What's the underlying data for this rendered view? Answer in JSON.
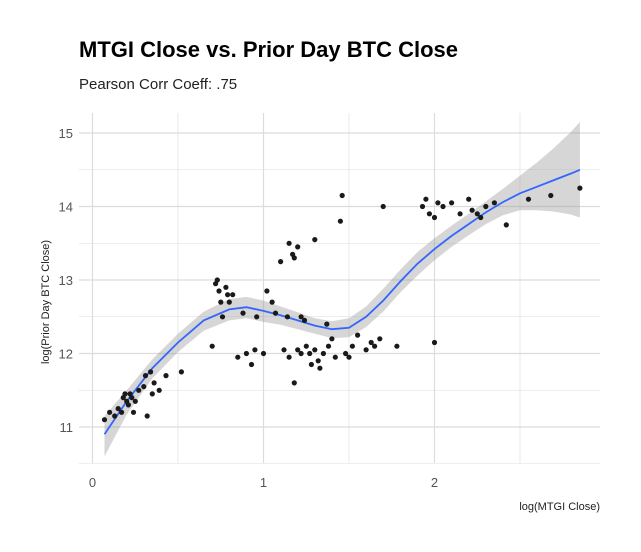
{
  "chart_data": {
    "type": "scatter",
    "title": "MTGI Close vs. Prior Day BTC Close",
    "subtitle": "Pearson Corr Coeff: .75",
    "xlabel": "log(MTGI Close)",
    "ylabel": "log(Prior Day BTC Close)",
    "xlim": [
      -0.07,
      2.97
    ],
    "ylim": [
      10.5,
      15.35
    ],
    "x_ticks": [
      0,
      1,
      2
    ],
    "x_tick_labels": [
      "0",
      "1",
      "2"
    ],
    "y_ticks": [
      11,
      12,
      13,
      14,
      15
    ],
    "y_tick_labels": [
      "11",
      "12",
      "13",
      "14",
      "15"
    ],
    "grid": true,
    "legend": "none",
    "colors": {
      "points": "#1a1a1a",
      "smooth_line": "#3366ff",
      "confidence_band": "#999999",
      "grid": "#dcdcdc",
      "tick_text": "#555555"
    },
    "points": [
      [
        0.07,
        11.1
      ],
      [
        0.1,
        11.2
      ],
      [
        0.13,
        11.15
      ],
      [
        0.15,
        11.25
      ],
      [
        0.17,
        11.2
      ],
      [
        0.18,
        11.4
      ],
      [
        0.19,
        11.45
      ],
      [
        0.2,
        11.35
      ],
      [
        0.21,
        11.3
      ],
      [
        0.22,
        11.45
      ],
      [
        0.23,
        11.4
      ],
      [
        0.24,
        11.2
      ],
      [
        0.25,
        11.35
      ],
      [
        0.27,
        11.5
      ],
      [
        0.3,
        11.55
      ],
      [
        0.31,
        11.7
      ],
      [
        0.32,
        11.15
      ],
      [
        0.34,
        11.75
      ],
      [
        0.35,
        11.45
      ],
      [
        0.36,
        11.6
      ],
      [
        0.39,
        11.5
      ],
      [
        0.43,
        11.7
      ],
      [
        0.52,
        11.75
      ],
      [
        0.7,
        12.1
      ],
      [
        0.72,
        12.95
      ],
      [
        0.73,
        13.0
      ],
      [
        0.74,
        12.85
      ],
      [
        0.75,
        12.7
      ],
      [
        0.76,
        12.5
      ],
      [
        0.78,
        12.9
      ],
      [
        0.79,
        12.8
      ],
      [
        0.8,
        12.7
      ],
      [
        0.82,
        12.8
      ],
      [
        0.85,
        11.95
      ],
      [
        0.88,
        12.55
      ],
      [
        0.9,
        12.0
      ],
      [
        0.93,
        11.85
      ],
      [
        0.95,
        12.05
      ],
      [
        0.96,
        12.5
      ],
      [
        1.0,
        12.0
      ],
      [
        1.02,
        12.85
      ],
      [
        1.05,
        12.7
      ],
      [
        1.07,
        12.55
      ],
      [
        1.1,
        13.25
      ],
      [
        1.12,
        12.05
      ],
      [
        1.14,
        12.5
      ],
      [
        1.15,
        13.5
      ],
      [
        1.17,
        13.35
      ],
      [
        1.18,
        13.3
      ],
      [
        1.2,
        13.45
      ],
      [
        1.22,
        12.5
      ],
      [
        1.24,
        12.45
      ],
      [
        1.15,
        11.95
      ],
      [
        1.18,
        11.6
      ],
      [
        1.2,
        12.05
      ],
      [
        1.22,
        12.0
      ],
      [
        1.25,
        12.1
      ],
      [
        1.27,
        12.0
      ],
      [
        1.28,
        11.85
      ],
      [
        1.3,
        12.05
      ],
      [
        1.32,
        11.9
      ],
      [
        1.35,
        12.0
      ],
      [
        1.37,
        12.4
      ],
      [
        1.38,
        12.1
      ],
      [
        1.3,
        13.55
      ],
      [
        1.33,
        11.8
      ],
      [
        1.4,
        12.2
      ],
      [
        1.42,
        11.95
      ],
      [
        1.45,
        13.8
      ],
      [
        1.46,
        14.15
      ],
      [
        1.48,
        12.0
      ],
      [
        1.5,
        11.95
      ],
      [
        1.52,
        12.1
      ],
      [
        1.55,
        12.25
      ],
      [
        1.6,
        12.05
      ],
      [
        1.63,
        12.15
      ],
      [
        1.65,
        12.1
      ],
      [
        1.68,
        12.2
      ],
      [
        1.7,
        14.0
      ],
      [
        1.78,
        12.1
      ],
      [
        1.93,
        14.0
      ],
      [
        1.95,
        14.1
      ],
      [
        1.97,
        13.9
      ],
      [
        2.0,
        13.85
      ],
      [
        2.02,
        14.05
      ],
      [
        2.05,
        14.0
      ],
      [
        2.0,
        12.15
      ],
      [
        2.1,
        14.05
      ],
      [
        2.15,
        13.9
      ],
      [
        2.2,
        14.1
      ],
      [
        2.22,
        13.95
      ],
      [
        2.25,
        13.9
      ],
      [
        2.27,
        13.85
      ],
      [
        2.3,
        14.0
      ],
      [
        2.35,
        14.05
      ],
      [
        2.42,
        13.75
      ],
      [
        2.55,
        14.1
      ],
      [
        2.68,
        14.15
      ],
      [
        2.85,
        14.25
      ]
    ],
    "smooth_line": [
      [
        0.07,
        10.9
      ],
      [
        0.2,
        11.35
      ],
      [
        0.35,
        11.8
      ],
      [
        0.5,
        12.15
      ],
      [
        0.65,
        12.45
      ],
      [
        0.8,
        12.6
      ],
      [
        0.9,
        12.63
      ],
      [
        1.0,
        12.58
      ],
      [
        1.1,
        12.52
      ],
      [
        1.2,
        12.45
      ],
      [
        1.3,
        12.38
      ],
      [
        1.4,
        12.33
      ],
      [
        1.5,
        12.35
      ],
      [
        1.6,
        12.5
      ],
      [
        1.7,
        12.72
      ],
      [
        1.8,
        12.98
      ],
      [
        1.9,
        13.22
      ],
      [
        2.0,
        13.42
      ],
      [
        2.1,
        13.6
      ],
      [
        2.2,
        13.76
      ],
      [
        2.3,
        13.92
      ],
      [
        2.4,
        14.06
      ],
      [
        2.5,
        14.18
      ],
      [
        2.6,
        14.27
      ],
      [
        2.7,
        14.36
      ],
      [
        2.8,
        14.45
      ],
      [
        2.85,
        14.5
      ]
    ],
    "band_upper": [
      [
        0.07,
        11.15
      ],
      [
        0.2,
        11.5
      ],
      [
        0.35,
        11.92
      ],
      [
        0.5,
        12.27
      ],
      [
        0.65,
        12.57
      ],
      [
        0.8,
        12.74
      ],
      [
        0.9,
        12.77
      ],
      [
        1.0,
        12.72
      ],
      [
        1.1,
        12.64
      ],
      [
        1.2,
        12.56
      ],
      [
        1.3,
        12.48
      ],
      [
        1.4,
        12.44
      ],
      [
        1.5,
        12.48
      ],
      [
        1.6,
        12.64
      ],
      [
        1.7,
        12.88
      ],
      [
        1.8,
        13.14
      ],
      [
        1.9,
        13.38
      ],
      [
        2.0,
        13.57
      ],
      [
        2.1,
        13.74
      ],
      [
        2.2,
        13.9
      ],
      [
        2.3,
        14.07
      ],
      [
        2.4,
        14.24
      ],
      [
        2.5,
        14.42
      ],
      [
        2.6,
        14.6
      ],
      [
        2.7,
        14.8
      ],
      [
        2.8,
        15.02
      ],
      [
        2.85,
        15.15
      ]
    ],
    "band_lower": [
      [
        0.07,
        10.6
      ],
      [
        0.2,
        11.17
      ],
      [
        0.35,
        11.66
      ],
      [
        0.5,
        12.02
      ],
      [
        0.65,
        12.31
      ],
      [
        0.8,
        12.45
      ],
      [
        0.9,
        12.48
      ],
      [
        1.0,
        12.43
      ],
      [
        1.1,
        12.39
      ],
      [
        1.2,
        12.33
      ],
      [
        1.3,
        12.27
      ],
      [
        1.4,
        12.21
      ],
      [
        1.5,
        12.22
      ],
      [
        1.6,
        12.36
      ],
      [
        1.7,
        12.57
      ],
      [
        1.8,
        12.83
      ],
      [
        1.9,
        13.06
      ],
      [
        2.0,
        13.27
      ],
      [
        2.1,
        13.45
      ],
      [
        2.2,
        13.61
      ],
      [
        2.3,
        13.76
      ],
      [
        2.4,
        13.88
      ],
      [
        2.5,
        13.95
      ],
      [
        2.6,
        13.95
      ],
      [
        2.7,
        13.93
      ],
      [
        2.8,
        13.89
      ],
      [
        2.85,
        13.85
      ]
    ]
  }
}
